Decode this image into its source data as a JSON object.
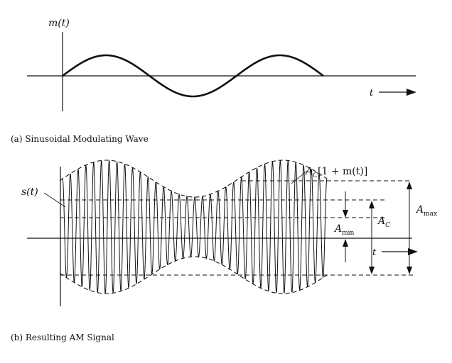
{
  "panel_a": {
    "signal_label": "m(t)",
    "time_label": "t",
    "caption": "(a) Sinusoidal Modulating Wave"
  },
  "panel_b": {
    "signal_label": "s(t)",
    "envelope_label_main": "A",
    "envelope_label_sub": "C",
    "envelope_label_rest": "[1 + m(t)]",
    "time_label": "t",
    "a_max_main": "A",
    "a_max_sub": "max",
    "a_min_main": "A",
    "a_min_sub": "min",
    "a_c_main": "A",
    "a_c_sub": "C",
    "caption": "(b) Resulting AM Signal"
  },
  "colors": {
    "ink": "#111111",
    "background": "#ffffff"
  }
}
